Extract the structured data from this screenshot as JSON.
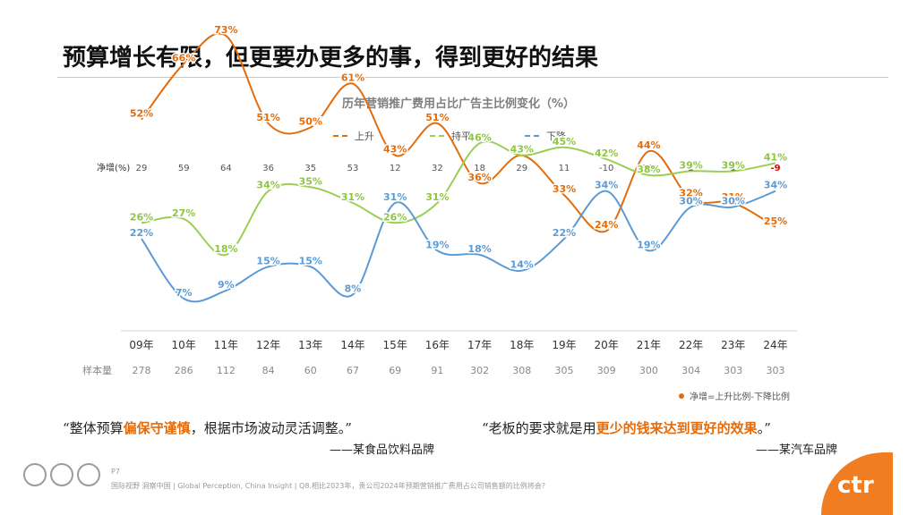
{
  "page": {
    "title": "预算增长有限，但更要办更多的事，得到更好的结果"
  },
  "chart_data": {
    "type": "line",
    "title": "历年营销推广费用占比广告主比例变化（%）",
    "legend_position": "top",
    "categories": [
      "09年",
      "10年",
      "11年",
      "12年",
      "13年",
      "14年",
      "15年",
      "16年",
      "17年",
      "18年",
      "19年",
      "20年",
      "21年",
      "22年",
      "23年",
      "24年"
    ],
    "series": [
      {
        "name": "上升",
        "color": "#e46c0a",
        "label_color": "#e46c0a",
        "values": [
          52,
          66,
          73,
          51,
          50,
          61,
          43,
          51,
          36,
          43,
          33,
          24,
          44,
          32,
          31,
          25
        ]
      },
      {
        "name": "持平",
        "color": "#9bcf53",
        "label_color": "#8dc63f",
        "values": [
          26,
          27,
          18,
          34,
          35,
          31,
          26,
          31,
          46,
          43,
          45,
          42,
          38,
          39,
          39,
          41
        ]
      },
      {
        "name": "下降",
        "color": "#5b9bd5",
        "label_color": "#5b9bd5",
        "values": [
          22,
          7,
          9,
          15,
          15,
          8,
          31,
          19,
          18,
          14,
          22,
          34,
          19,
          30,
          30,
          34
        ]
      }
    ],
    "net_row": {
      "label": "净增(%)",
      "values": [
        "29",
        "59",
        "64",
        "36",
        "35",
        "53",
        "12",
        "32",
        "18",
        "29",
        "11",
        "-10",
        "25",
        "2",
        "1",
        "-9"
      ],
      "emphasis_from_index": 12,
      "negative_highlight_index": 15
    },
    "sample_row": {
      "label": "样本量",
      "values": [
        "278",
        "286",
        "112",
        "84",
        "60",
        "67",
        "69",
        "91",
        "302",
        "308",
        "305",
        "309",
        "300",
        "304",
        "303",
        "303"
      ]
    },
    "note": "净增=上升比例-下降比例",
    "note_color": "#e46c0a",
    "value_suffix": "%"
  },
  "quotes": {
    "left": {
      "before": "“整体预算",
      "highlight": "偏保守谨慎",
      "after": "，根据市场波动灵活调整。”",
      "source": "——某食品饮料品牌"
    },
    "right": {
      "before": "“老板的要求就是用",
      "highlight": "更少的钱来达到更好的效果",
      "after": "。”",
      "source": "——某汽车品牌"
    }
  },
  "footer": {
    "page_number": "P7",
    "note": "国际视野 洞察中国 | Global Perception, China Insight | Q8.相比2023年，贵公司2024年预期营销推广费用占公司销售额的比例将会?"
  },
  "brand": {
    "logo_text": "ctr",
    "accent": "#f07d22"
  }
}
